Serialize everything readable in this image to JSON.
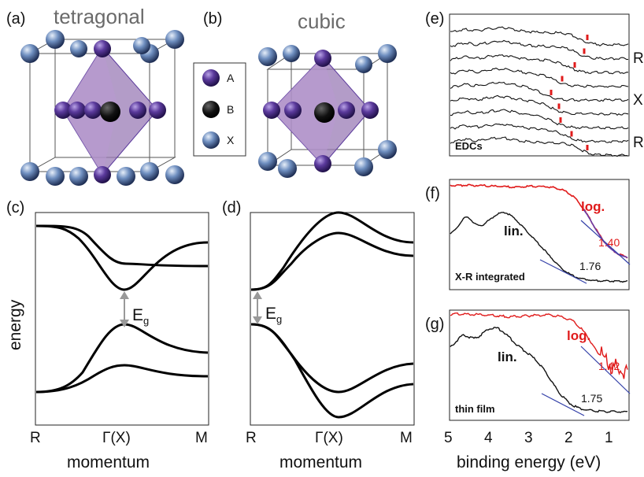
{
  "panel_labels": {
    "a": "(a)",
    "b": "(b)",
    "c": "(c)",
    "d": "(d)",
    "e": "(e)",
    "f": "(f)",
    "g": "(g)"
  },
  "structures": {
    "tetragonal": "tetragonal",
    "cubic": "cubic",
    "legend": [
      {
        "label": "A",
        "color": "#4b2d8a"
      },
      {
        "label": "B",
        "color": "#111111"
      },
      {
        "label": "X",
        "color": "#4f6c9c"
      }
    ],
    "octahedron_color": "#9a7bb5"
  },
  "bands": {
    "ylabel": "energy",
    "xlabel": "momentum",
    "ticks": [
      "R",
      "Γ(X)",
      "M"
    ],
    "gap_label": "E",
    "gap_sub": "g"
  },
  "edc": {
    "inset_label": "EDCs",
    "right_labels": [
      "R",
      "X",
      "R"
    ],
    "marker_color": "#e01b1b"
  },
  "panel_f": {
    "log_label": "log.",
    "lin_label": "lin.",
    "log_value": "1.40",
    "lin_value": "1.76",
    "caption": "X-R integrated"
  },
  "panel_g": {
    "log_label": "log.",
    "lin_label": "lin.",
    "log_value": "1.42",
    "lin_value": "1.75",
    "caption": "thin film"
  },
  "binding_axis": {
    "ticks": [
      "5",
      "4",
      "3",
      "2",
      "1"
    ],
    "xlabel": "binding energy (eV)"
  },
  "colors": {
    "log_curve": "#e01b1b",
    "lin_curve": "#111111",
    "fit_line": "#3340a8"
  }
}
